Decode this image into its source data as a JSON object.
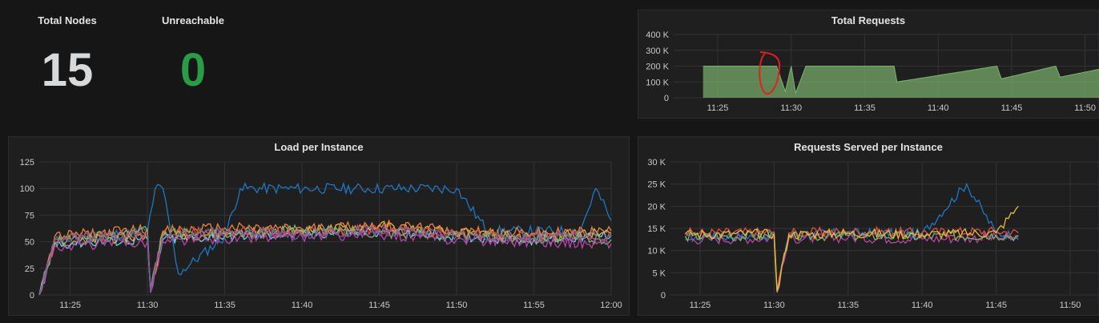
{
  "stats": {
    "total_nodes": {
      "title": "Total Nodes",
      "value": "15",
      "color": "#d8d9da"
    },
    "unreachable": {
      "title": "Unreachable",
      "value": "0",
      "color": "#299c46"
    }
  },
  "panels": {
    "total_requests": {
      "title": "Total Requests"
    },
    "load_per_instance": {
      "title": "Load per Instance"
    },
    "requests_served": {
      "title": "Requests Served per Instance"
    }
  },
  "chart_data": [
    {
      "id": "total_requests",
      "type": "area",
      "title": "Total Requests",
      "x_ticks": [
        "11:25",
        "11:30",
        "11:35",
        "11:40",
        "11:45",
        "11:50"
      ],
      "y_ticks": [
        "0",
        "100 K",
        "200 K",
        "300 K",
        "400 K"
      ],
      "ylim": [
        0,
        400000
      ],
      "grid": true,
      "series": [
        {
          "color": "#7eb26d",
          "x": [
            "11:24",
            "11:29",
            "11:29.6",
            "11:30",
            "11:30.3",
            "11:31",
            "11:37",
            "11:37.2",
            "11:44",
            "11:44.3",
            "11:48",
            "11:48.3",
            "11:52"
          ],
          "y": [
            200000,
            200000,
            40000,
            200000,
            30000,
            200000,
            200000,
            100000,
            200000,
            120000,
            200000,
            130000,
            200000
          ]
        }
      ],
      "annotations": [
        "red circled dip near 11:30"
      ]
    },
    {
      "id": "load_per_instance",
      "type": "line",
      "title": "Load per Instance",
      "x_ticks": [
        "11:25",
        "11:30",
        "11:35",
        "11:40",
        "11:45",
        "11:50",
        "11:55",
        "12:00"
      ],
      "y_ticks": [
        "0",
        "25",
        "50",
        "75",
        "100",
        "125"
      ],
      "ylim": [
        0,
        125
      ],
      "grid": true,
      "series_count": 15,
      "series": [
        {
          "color": "#1f78c1",
          "x": [
            "11:23",
            "11:24",
            "11:30",
            "11:30.5",
            "11:31",
            "11:32",
            "11:35",
            "11:36",
            "11:50",
            "11:52",
            "11:58",
            "11:59",
            "12:00"
          ],
          "y": [
            0,
            52,
            60,
            100,
            100,
            20,
            55,
            100,
            100,
            60,
            60,
            100,
            70
          ]
        },
        {
          "color": "#eab839",
          "x": [
            "11:23",
            "11:24",
            "11:30",
            "11:30.2",
            "11:31",
            "11:35",
            "11:40",
            "11:45",
            "11:50",
            "11:55",
            "12:00"
          ],
          "y": [
            0,
            50,
            55,
            5,
            55,
            58,
            60,
            65,
            58,
            55,
            58
          ]
        },
        {
          "color": "#6ed0e0",
          "x": [
            "11:23",
            "11:24",
            "11:30",
            "11:30.2",
            "11:31",
            "11:35",
            "11:40",
            "11:45",
            "11:50",
            "11:55",
            "12:00"
          ],
          "y": [
            0,
            48,
            52,
            3,
            52,
            55,
            57,
            60,
            55,
            52,
            56
          ]
        },
        {
          "color": "#ef843c",
          "x": [
            "11:23",
            "11:24",
            "11:30",
            "11:30.2",
            "11:31",
            "11:35",
            "11:40",
            "11:45",
            "11:50",
            "11:55",
            "12:00"
          ],
          "y": [
            0,
            55,
            62,
            4,
            60,
            63,
            62,
            66,
            60,
            58,
            60
          ]
        },
        {
          "color": "#e24d42",
          "x": [
            "11:23",
            "11:24",
            "11:30",
            "11:30.2",
            "11:31",
            "11:35",
            "11:40",
            "11:45",
            "11:50",
            "11:55",
            "12:00"
          ],
          "y": [
            0,
            53,
            57,
            3,
            57,
            60,
            58,
            62,
            57,
            55,
            57
          ]
        },
        {
          "color": "#7eb26d",
          "x": [
            "11:23",
            "11:24",
            "11:30",
            "11:30.2",
            "11:31",
            "11:35",
            "11:40",
            "11:45",
            "11:50",
            "11:55",
            "12:00"
          ],
          "y": [
            0,
            50,
            60,
            5,
            58,
            57,
            61,
            59,
            55,
            53,
            52
          ]
        },
        {
          "color": "#ba43a9",
          "x": [
            "11:23",
            "11:24",
            "11:30",
            "11:30.2",
            "11:31",
            "11:35",
            "11:40",
            "11:45",
            "11:50",
            "11:55",
            "12:00"
          ],
          "y": [
            0,
            46,
            50,
            2,
            50,
            53,
            55,
            57,
            52,
            50,
            48
          ]
        },
        {
          "color": "#705da0",
          "x": [
            "11:23",
            "11:24",
            "11:30",
            "11:30.2",
            "11:31",
            "11:35",
            "11:40",
            "11:45",
            "11:50",
            "11:55",
            "12:00"
          ],
          "y": [
            0,
            51,
            56,
            3,
            55,
            59,
            57,
            61,
            56,
            54,
            55
          ]
        }
      ]
    },
    {
      "id": "requests_served",
      "type": "line",
      "title": "Requests Served per Instance",
      "x_ticks": [
        "11:25",
        "11:30",
        "11:35",
        "11:40",
        "11:45",
        "11:50"
      ],
      "y_ticks": [
        "0",
        "5 K",
        "10 K",
        "15 K",
        "20 K",
        "25 K",
        "30 K"
      ],
      "ylim": [
        0,
        30000
      ],
      "grid": true,
      "series_count": 15,
      "series": [
        {
          "color": "#1f78c1",
          "x": [
            "11:24",
            "11:30",
            "11:30.2",
            "11:31",
            "11:35",
            "11:40",
            "11:43",
            "11:45",
            "11:46.5"
          ],
          "y": [
            13000,
            13500,
            1000,
            13500,
            14000,
            13800,
            25000,
            13900,
            13500
          ]
        },
        {
          "color": "#e24d42",
          "x": [
            "11:24",
            "11:30",
            "11:30.2",
            "11:31",
            "11:35",
            "11:40",
            "11:45",
            "11:46.5"
          ],
          "y": [
            14000,
            14200,
            800,
            14000,
            14300,
            14100,
            14400,
            14000
          ]
        },
        {
          "color": "#ba43a9",
          "x": [
            "11:24",
            "11:30",
            "11:30.2",
            "11:31",
            "11:35",
            "11:40",
            "11:45",
            "11:46.5"
          ],
          "y": [
            12500,
            12800,
            500,
            12700,
            12900,
            12600,
            13000,
            12500
          ]
        },
        {
          "color": "#7eb26d",
          "x": [
            "11:24",
            "11:30",
            "11:30.2",
            "11:31",
            "11:35",
            "11:40",
            "11:45",
            "11:46.5"
          ],
          "y": [
            13200,
            13300,
            700,
            13100,
            13400,
            13200,
            13500,
            13200
          ]
        },
        {
          "color": "#eab839",
          "x": [
            "11:24",
            "11:30",
            "11:30.2",
            "11:31",
            "11:35",
            "11:40",
            "11:45",
            "11:46.5"
          ],
          "y": [
            13700,
            13800,
            900,
            13600,
            13900,
            13700,
            14000,
            20000
          ]
        }
      ]
    }
  ]
}
